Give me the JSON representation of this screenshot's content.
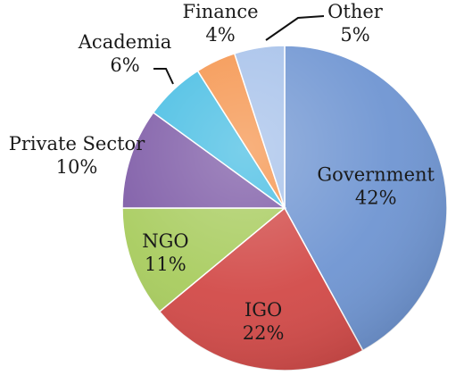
{
  "chart_data": {
    "type": "pie",
    "title": "",
    "slices": [
      {
        "label": "Government",
        "value": 42,
        "pct": "42%",
        "color": "#6f95d2"
      },
      {
        "label": "IGO",
        "value": 22,
        "pct": "22%",
        "color": "#d24a48"
      },
      {
        "label": "NGO",
        "value": 11,
        "pct": "11%",
        "color": "#a8cc5e"
      },
      {
        "label": "Private Sector",
        "value": 10,
        "pct": "10%",
        "color": "#7d5aa6"
      },
      {
        "label": "Academia",
        "value": 6,
        "pct": "6%",
        "color": "#46bde3"
      },
      {
        "label": "Finance",
        "value": 4,
        "pct": "4%",
        "color": "#f5934b"
      },
      {
        "label": "Other",
        "value": 5,
        "pct": "5%",
        "color": "#a6c1ea"
      }
    ],
    "start": "12 o'clock",
    "direction": "clockwise",
    "legend": "none"
  }
}
